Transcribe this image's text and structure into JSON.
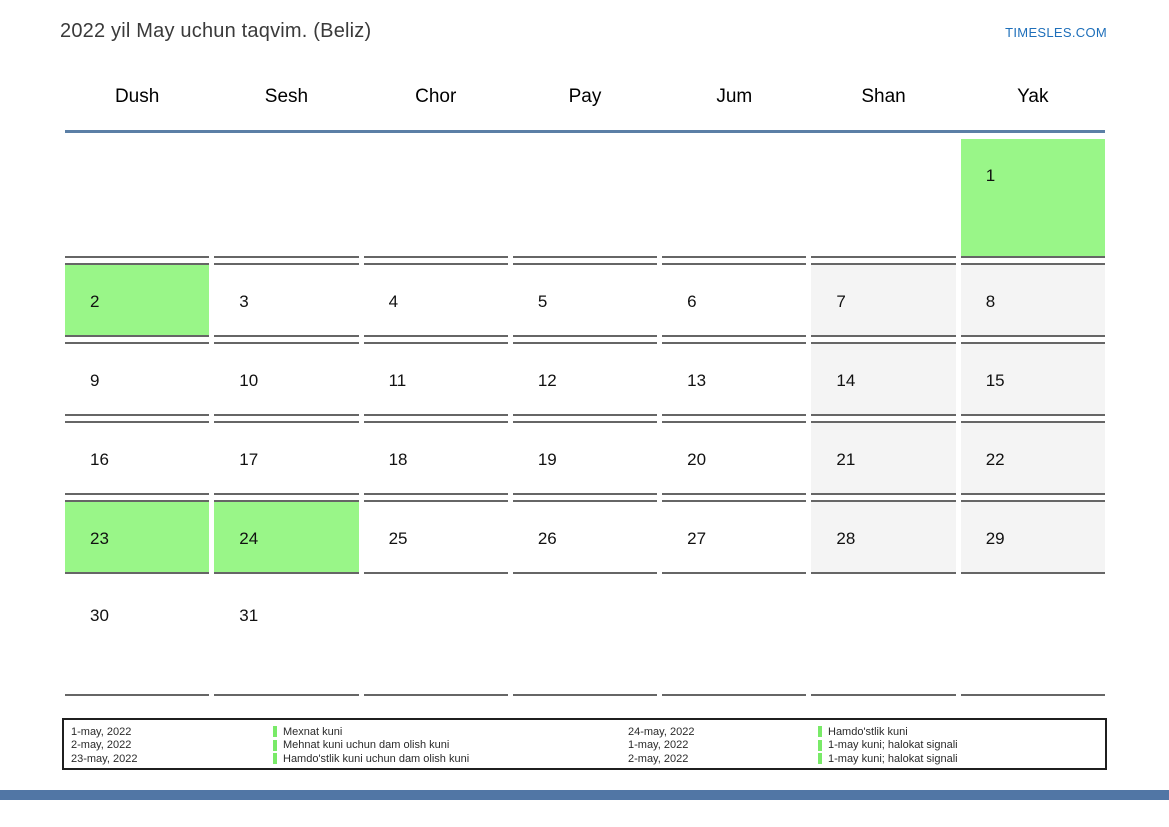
{
  "page": {
    "title": "2022 yil May uchun taqvim. (Beliz)",
    "site_link": "TIMESLES.COM"
  },
  "calendar": {
    "weekdays": [
      "Dush",
      "Sesh",
      "Chor",
      "Pay",
      "Jum",
      "Shan",
      "Yak"
    ],
    "weeks": [
      [
        {
          "day": "",
          "type": "empty"
        },
        {
          "day": "",
          "type": "empty"
        },
        {
          "day": "",
          "type": "empty"
        },
        {
          "day": "",
          "type": "empty"
        },
        {
          "day": "",
          "type": "empty"
        },
        {
          "day": "",
          "type": "empty"
        },
        {
          "day": "1",
          "type": "holiday"
        }
      ],
      [
        {
          "day": "2",
          "type": "holiday"
        },
        {
          "day": "3",
          "type": "workday"
        },
        {
          "day": "4",
          "type": "workday"
        },
        {
          "day": "5",
          "type": "workday"
        },
        {
          "day": "6",
          "type": "workday"
        },
        {
          "day": "7",
          "type": "weekend"
        },
        {
          "day": "8",
          "type": "weekend"
        }
      ],
      [
        {
          "day": "9",
          "type": "workday"
        },
        {
          "day": "10",
          "type": "workday"
        },
        {
          "day": "11",
          "type": "workday"
        },
        {
          "day": "12",
          "type": "workday"
        },
        {
          "day": "13",
          "type": "workday"
        },
        {
          "day": "14",
          "type": "weekend"
        },
        {
          "day": "15",
          "type": "weekend"
        }
      ],
      [
        {
          "day": "16",
          "type": "workday"
        },
        {
          "day": "17",
          "type": "workday"
        },
        {
          "day": "18",
          "type": "workday"
        },
        {
          "day": "19",
          "type": "workday"
        },
        {
          "day": "20",
          "type": "workday"
        },
        {
          "day": "21",
          "type": "weekend"
        },
        {
          "day": "22",
          "type": "weekend"
        }
      ],
      [
        {
          "day": "23",
          "type": "holiday"
        },
        {
          "day": "24",
          "type": "holiday"
        },
        {
          "day": "25",
          "type": "workday"
        },
        {
          "day": "26",
          "type": "workday"
        },
        {
          "day": "27",
          "type": "workday"
        },
        {
          "day": "28",
          "type": "weekend"
        },
        {
          "day": "29",
          "type": "weekend"
        }
      ],
      [
        {
          "day": "30",
          "type": "workday"
        },
        {
          "day": "31",
          "type": "workday"
        },
        {
          "day": "",
          "type": "empty"
        },
        {
          "day": "",
          "type": "empty"
        },
        {
          "day": "",
          "type": "empty"
        },
        {
          "day": "",
          "type": "empty"
        },
        {
          "day": "",
          "type": "empty"
        }
      ]
    ]
  },
  "legend": {
    "left": {
      "dates": [
        "1-may, 2022",
        "2-may, 2022",
        "23-may, 2022"
      ],
      "labels": [
        "Mexnat kuni",
        "Mehnat kuni uchun dam olish kuni",
        "Hamdo'stlik kuni uchun dam olish kuni"
      ]
    },
    "right": {
      "dates": [
        "24-may, 2022",
        "1-may, 2022",
        "2-may, 2022"
      ],
      "labels": [
        "Hamdo'stlik kuni",
        "1-may kuni; halokat signali",
        "1-may kuni; halokat signali"
      ]
    }
  },
  "colors": {
    "holiday_cell": "#99f688",
    "weekend_cell": "#f4f4f4",
    "header_separator": "#5b7fa6",
    "legend_marker": "#79ea68",
    "site_link": "#1e6fba",
    "footer_bar": "#5176a5"
  }
}
